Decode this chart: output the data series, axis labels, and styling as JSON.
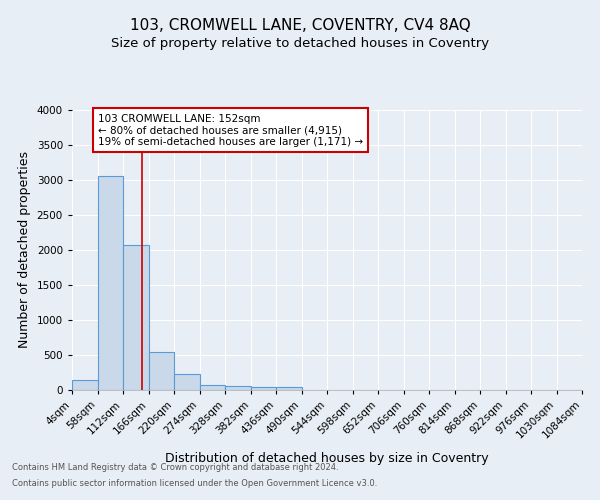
{
  "title": "103, CROMWELL LANE, COVENTRY, CV4 8AQ",
  "subtitle": "Size of property relative to detached houses in Coventry",
  "xlabel": "Distribution of detached houses by size in Coventry",
  "ylabel": "Number of detached properties",
  "footnote1": "Contains HM Land Registry data © Crown copyright and database right 2024.",
  "footnote2": "Contains public sector information licensed under the Open Government Licence v3.0.",
  "bin_edges": [
    4,
    58,
    112,
    166,
    220,
    274,
    328,
    382,
    436,
    490,
    544,
    598,
    652,
    706,
    760,
    814,
    868,
    922,
    976,
    1030,
    1084
  ],
  "bar_heights": [
    150,
    3050,
    2075,
    550,
    225,
    75,
    60,
    50,
    50,
    0,
    0,
    0,
    0,
    0,
    0,
    0,
    0,
    0,
    0,
    0
  ],
  "bar_color": "#c9d9ea",
  "bar_edge_color": "#5b9bd5",
  "red_line_x": 152,
  "annotation_text": "103 CROMWELL LANE: 152sqm\n← 80% of detached houses are smaller (4,915)\n19% of semi-detached houses are larger (1,171) →",
  "annotation_box_color": "#ffffff",
  "annotation_box_edge": "#cc0000",
  "annotation_text_color": "#000000",
  "red_line_color": "#cc0000",
  "ylim": [
    0,
    4000
  ],
  "yticks": [
    0,
    500,
    1000,
    1500,
    2000,
    2500,
    3000,
    3500,
    4000
  ],
  "bg_color": "#e8eef5",
  "plot_bg_color": "#e8eef5",
  "title_fontsize": 11,
  "subtitle_fontsize": 9.5,
  "tick_label_fontsize": 7.5,
  "ylabel_fontsize": 9,
  "xlabel_fontsize": 9,
  "footnote_fontsize": 6,
  "annotation_fontsize": 7.5
}
